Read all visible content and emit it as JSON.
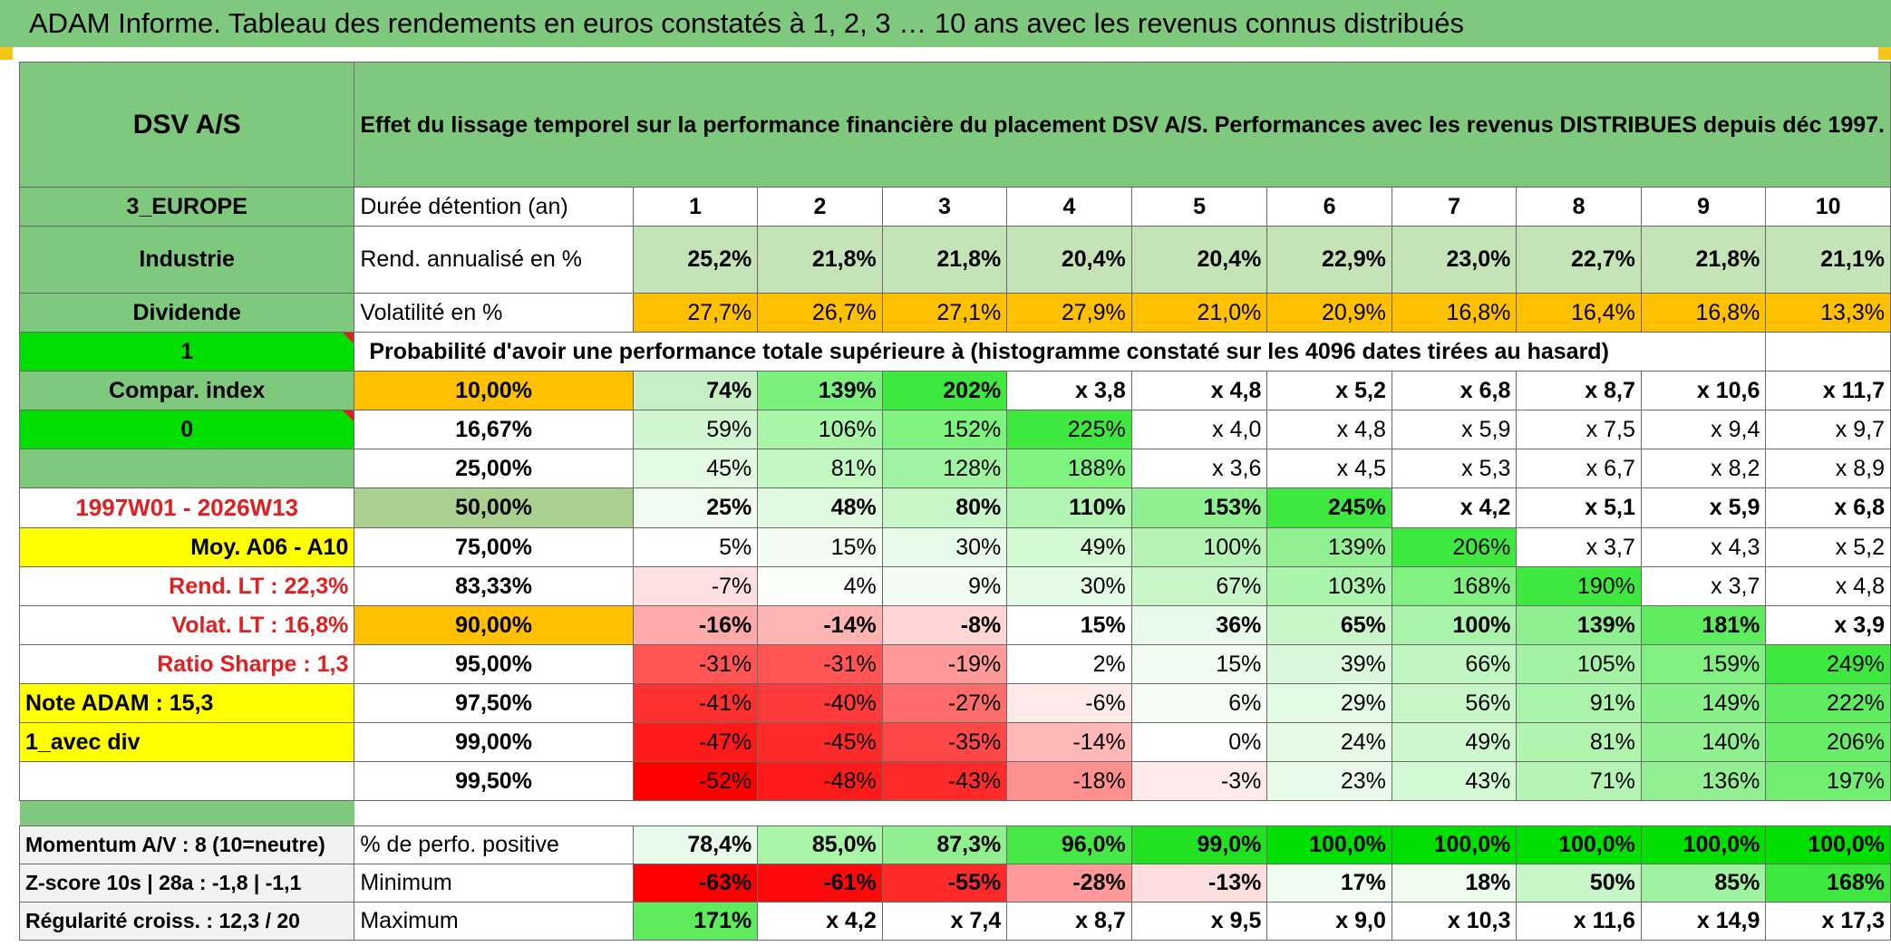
{
  "title": "ADAM Informe. Tableau des rendements en euros constatés à 1, 2, 3 … 10 ans avec les revenus connus distribués",
  "header": {
    "asset_name": "DSV A/S",
    "description": "Effet du lissage temporel sur la performance financière du placement DSV A/S. Performances avec les revenus DISTRIBUES depuis déc 1997."
  },
  "left": {
    "region": "3_EUROPE",
    "sector": "Industrie",
    "dividend": "Dividende",
    "one": "1",
    "compar": "Compar. index",
    "zero": "0",
    "period": "1997W01 - 2026W13",
    "moy": "Moy. A06 - A10",
    "rend_lt": "Rend. LT :    22,3%",
    "volat_lt": "Volat. LT :    16,8%",
    "sharpe": "Ratio Sharpe :    1,3",
    "note": "Note ADAM : 15,3",
    "avec_div": "1_avec div",
    "momentum": "Momentum A/V : 8 (10=neutre)",
    "zscore": "Z-score 10s | 28a : -1,8 | -1,1",
    "regularite": "Régularité croiss. : 12,3 / 20"
  },
  "durations": {
    "label": "Durée détention (an)",
    "values": [
      "1",
      "2",
      "3",
      "4",
      "5",
      "6",
      "7",
      "8",
      "9",
      "10"
    ]
  },
  "rend": {
    "label": "Rend. annualisé en %",
    "values": [
      "25,2%",
      "21,8%",
      "21,8%",
      "20,4%",
      "20,4%",
      "22,9%",
      "23,0%",
      "22,7%",
      "21,8%",
      "21,1%"
    ]
  },
  "volat": {
    "label": "Volatilité en %",
    "values": [
      "27,7%",
      "26,7%",
      "27,1%",
      "27,9%",
      "21,0%",
      "20,9%",
      "16,8%",
      "16,4%",
      "16,8%",
      "13,3%"
    ]
  },
  "proba_title": "Probabilité d'avoir une performance totale supérieure à (histogramme constaté sur les 4096 dates tirées au hasard)",
  "proba_rows": [
    {
      "pct": "10,00%",
      "values": [
        "74%",
        "139%",
        "202%",
        "x 3,8",
        "x 4,8",
        "x 5,2",
        "x 6,8",
        "x 8,7",
        "x 10,6",
        "x 11,7"
      ]
    },
    {
      "pct": "16,67%",
      "values": [
        "59%",
        "106%",
        "152%",
        "225%",
        "x 4,0",
        "x 4,8",
        "x 5,9",
        "x 7,5",
        "x 9,4",
        "x 9,7"
      ]
    },
    {
      "pct": "25,00%",
      "values": [
        "45%",
        "81%",
        "128%",
        "188%",
        "x 3,6",
        "x 4,5",
        "x 5,3",
        "x 6,7",
        "x 8,2",
        "x 8,9"
      ]
    },
    {
      "pct": "50,00%",
      "values": [
        "25%",
        "48%",
        "80%",
        "110%",
        "153%",
        "245%",
        "x 4,2",
        "x 5,1",
        "x 5,9",
        "x 6,8"
      ]
    },
    {
      "pct": "75,00%",
      "values": [
        "5%",
        "15%",
        "30%",
        "49%",
        "100%",
        "139%",
        "206%",
        "x 3,7",
        "x 4,3",
        "x 5,2"
      ]
    },
    {
      "pct": "83,33%",
      "values": [
        "-7%",
        "4%",
        "9%",
        "30%",
        "67%",
        "103%",
        "168%",
        "190%",
        "x 3,7",
        "x 4,8"
      ]
    },
    {
      "pct": "90,00%",
      "values": [
        "-16%",
        "-14%",
        "-8%",
        "15%",
        "36%",
        "65%",
        "100%",
        "139%",
        "181%",
        "x 3,9"
      ]
    },
    {
      "pct": "95,00%",
      "values": [
        "-31%",
        "-31%",
        "-19%",
        "2%",
        "15%",
        "39%",
        "66%",
        "105%",
        "159%",
        "249%"
      ]
    },
    {
      "pct": "97,50%",
      "values": [
        "-41%",
        "-40%",
        "-27%",
        "-6%",
        "6%",
        "29%",
        "56%",
        "91%",
        "149%",
        "222%"
      ]
    },
    {
      "pct": "99,00%",
      "values": [
        "-47%",
        "-45%",
        "-35%",
        "-14%",
        "0%",
        "24%",
        "49%",
        "81%",
        "140%",
        "206%"
      ]
    },
    {
      "pct": "99,50%",
      "values": [
        "-52%",
        "-48%",
        "-43%",
        "-18%",
        "-3%",
        "23%",
        "43%",
        "71%",
        "136%",
        "197%"
      ]
    }
  ],
  "stats": [
    {
      "label": "% de perfo. positive",
      "values": [
        "78,4%",
        "85,0%",
        "87,3%",
        "96,0%",
        "99,0%",
        "100,0%",
        "100,0%",
        "100,0%",
        "100,0%",
        "100,0%"
      ]
    },
    {
      "label": "Minimum",
      "values": [
        "-63%",
        "-61%",
        "-55%",
        "-28%",
        "-13%",
        "17%",
        "18%",
        "50%",
        "85%",
        "168%"
      ]
    },
    {
      "label": "Maximum",
      "values": [
        "171%",
        "x 4,2",
        "x 7,4",
        "x 8,7",
        "x 9,5",
        "x 9,0",
        "x 10,3",
        "x 11,6",
        "x 14,9",
        "x 17,3"
      ]
    }
  ],
  "colors": {
    "proba": [
      [
        "#c6efc6",
        "#7cf07c",
        "#3ee83e",
        "#ffffff",
        "#ffffff",
        "#ffffff",
        "#ffffff",
        "#ffffff",
        "#ffffff",
        "#ffffff"
      ],
      [
        "#d2f5d2",
        "#a8f5a8",
        "#7ff27f",
        "#3ee83e",
        "#ffffff",
        "#ffffff",
        "#ffffff",
        "#ffffff",
        "#ffffff",
        "#ffffff"
      ],
      [
        "#e2f9e2",
        "#c2f7c2",
        "#a0f3a0",
        "#7ff27f",
        "#ffffff",
        "#ffffff",
        "#ffffff",
        "#ffffff",
        "#ffffff",
        "#ffffff"
      ],
      [
        "#f0fcf0",
        "#e0f9e0",
        "#c8f6c8",
        "#b2f4b2",
        "#8ef08e",
        "#3ee83e",
        "#ffffff",
        "#ffffff",
        "#ffffff",
        "#ffffff"
      ],
      [
        "#ffffff",
        "#f4fdf4",
        "#e8fbe8",
        "#d4f7d4",
        "#b5f4b5",
        "#92f092",
        "#3ee83e",
        "#ffffff",
        "#ffffff",
        "#ffffff"
      ],
      [
        "#ffe0e0",
        "#fbfefb",
        "#f4fdf4",
        "#e5fae5",
        "#c8f6c8",
        "#abf4ab",
        "#80f080",
        "#3ee83e",
        "#ffffff",
        "#ffffff"
      ],
      [
        "#ffaaaa",
        "#ffb4b4",
        "#ffd4d4",
        "#ffffff",
        "#e8fbe8",
        "#c8f6c8",
        "#aaf3aa",
        "#8ef08e",
        "#5eec5e",
        "#ffffff"
      ],
      [
        "#ff5555",
        "#ff5555",
        "#ff9a9a",
        "#ffffff",
        "#f2fdf2",
        "#dcf8dc",
        "#c0f6c0",
        "#a4f3a4",
        "#80f080",
        "#3ee83e"
      ],
      [
        "#ff3030",
        "#ff3a3a",
        "#ff6c6c",
        "#ffeaea",
        "#f6fdf6",
        "#e2f9e2",
        "#c8f6c8",
        "#aaf3aa",
        "#88f088",
        "#60ec60"
      ],
      [
        "#ff1a1a",
        "#ff2a2a",
        "#ff4848",
        "#ffb8b8",
        "#ffffff",
        "#e6fae6",
        "#cef7ce",
        "#b0f4b0",
        "#8ef08e",
        "#68ed68"
      ],
      [
        "#ff0000",
        "#ff1a1a",
        "#ff2a2a",
        "#ff9090",
        "#ffeaea",
        "#e8fbe8",
        "#d4f7d4",
        "#b5f4b5",
        "#92f092",
        "#70ee70"
      ]
    ],
    "stats": [
      [
        "#e8fbe8",
        "#a8f5a8",
        "#90f090",
        "#46e846",
        "#22e022",
        "#00e000",
        "#00e000",
        "#00e000",
        "#00e000",
        "#00e000"
      ],
      [
        "#ff0000",
        "#ff0a0a",
        "#ff2a2a",
        "#ff9898",
        "#ffdede",
        "#f0fcf0",
        "#eefcee",
        "#c8f6c8",
        "#9ff29f",
        "#3ee83e"
      ],
      [
        "#5eec5e",
        "#ffffff",
        "#ffffff",
        "#ffffff",
        "#ffffff",
        "#ffffff",
        "#ffffff",
        "#ffffff",
        "#ffffff",
        "#ffffff"
      ]
    ]
  }
}
